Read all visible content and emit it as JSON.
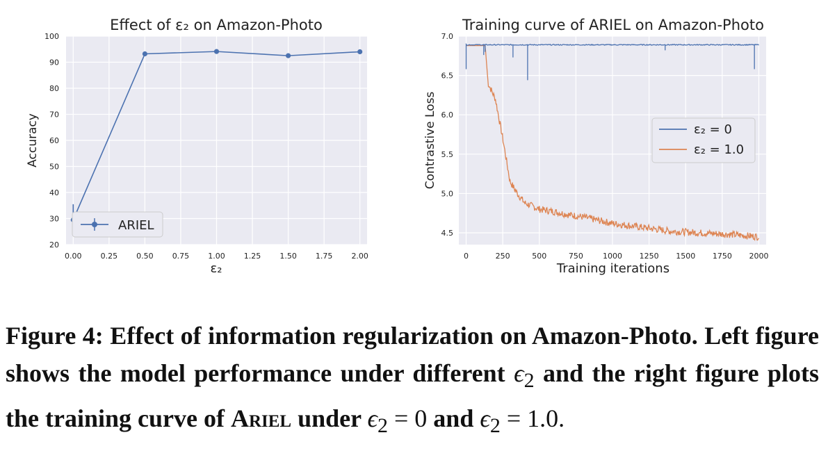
{
  "figure": {
    "caption": {
      "label": "Figure 4:",
      "line1_rest": "Effect of information regularization on Amazon-Photo. Left figure shows the model performance under different",
      "eps_symbol": "ϵ",
      "eps_sub": "2",
      "mid": "and the right figure plots the training curve of",
      "model_name": "Ariel",
      "under": "under",
      "eq0": " = 0",
      "and": "and",
      "eq1": " = 1.0."
    }
  },
  "chart_data": [
    {
      "type": "line",
      "title": "Effect of ε₂ on Amazon-Photo",
      "xlabel": "ε₂",
      "ylabel": "Accuracy",
      "xlim": [
        -0.05,
        2.05
      ],
      "ylim": [
        20,
        100
      ],
      "xticks": [
        "0.00",
        "0.25",
        "0.50",
        "0.75",
        "1.00",
        "1.25",
        "1.50",
        "1.75",
        "2.00"
      ],
      "yticks": [
        "20",
        "30",
        "40",
        "50",
        "60",
        "70",
        "80",
        "90",
        "100"
      ],
      "grid": true,
      "legend": "lower-left",
      "series": [
        {
          "name": "ARIEL",
          "color": "#4c72b0",
          "marker": "circle",
          "errorbars": true,
          "x": [
            0.0,
            0.5,
            1.0,
            1.5,
            2.0
          ],
          "y": [
            29.5,
            93.2,
            94.1,
            92.5,
            94.0
          ],
          "yerr": [
            6,
            0.4,
            0.4,
            0.4,
            0.4
          ]
        }
      ]
    },
    {
      "type": "line",
      "title": "Training curve of ARIEL on Amazon-Photo",
      "xlabel": "Training iterations",
      "ylabel": "Contrastive Loss",
      "xlim": [
        -50,
        2050
      ],
      "ylim": [
        4.35,
        7.0
      ],
      "xticks": [
        "0",
        "250",
        "500",
        "750",
        "1000",
        "1250",
        "1500",
        "1750",
        "2000"
      ],
      "yticks": [
        "4.5",
        "5.0",
        "5.5",
        "6.0",
        "6.5",
        "7.0"
      ],
      "grid": true,
      "legend": "center-right",
      "series": [
        {
          "name": "ε₂ = 0",
          "color": "#4c72b0",
          "x": [
            0,
            120,
            130,
            320,
            420,
            1360,
            1970,
            2000
          ],
          "y": [
            6.89,
            6.89,
            6.77,
            6.73,
            6.44,
            6.82,
            6.58,
            6.89
          ],
          "note_spikes_at": [
            0,
            120,
            320,
            420,
            1360,
            1970
          ]
        },
        {
          "name": "ε₂ = 1.0",
          "color": "#dd8452",
          "x": [
            0,
            100,
            130,
            150,
            200,
            250,
            300,
            350,
            400,
            500,
            600,
            700,
            800,
            1000,
            1200,
            1400,
            1600,
            1800,
            2000
          ],
          "y": [
            6.88,
            6.88,
            6.88,
            6.4,
            6.2,
            5.7,
            5.15,
            5.0,
            4.88,
            4.8,
            4.77,
            4.73,
            4.7,
            4.62,
            4.57,
            4.52,
            4.5,
            4.48,
            4.45
          ]
        }
      ]
    }
  ]
}
